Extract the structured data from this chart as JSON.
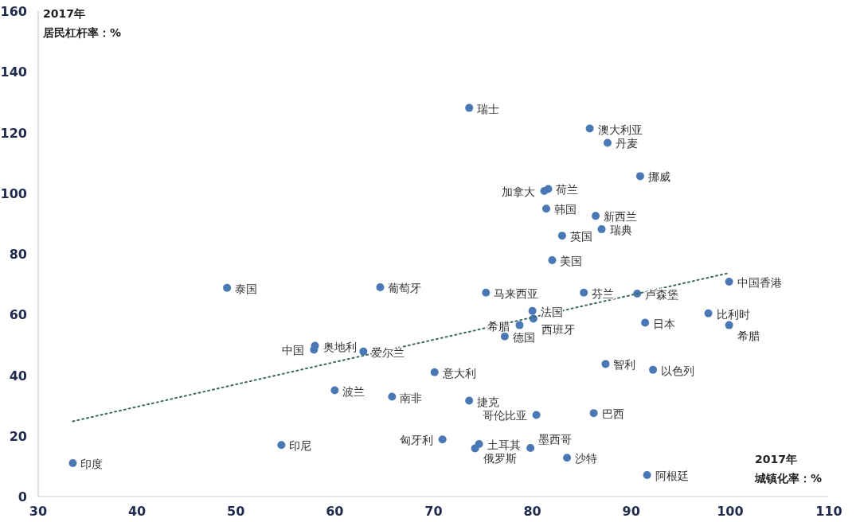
{
  "chart_data": {
    "type": "scatter",
    "xlabel": "城镇化率：%",
    "ylabel": "居民杠杆率：%",
    "xlim": [
      30,
      110
    ],
    "xticks": [
      30,
      40,
      50,
      60,
      70,
      80,
      90,
      100,
      110
    ],
    "ylim": [
      0,
      160
    ],
    "yticks": [
      0,
      20,
      40,
      60,
      80,
      100,
      120,
      140,
      160
    ],
    "grid": false,
    "marker": "circle",
    "series": [
      {
        "type": "scatter",
        "color": "#4a78b5",
        "x": [
          73.6,
          85.8,
          87.6,
          90.9,
          81.6,
          81.2,
          81.4,
          86.4,
          87.0,
          83.0,
          82.0,
          99.9,
          75.3,
          85.2,
          90.6,
          80.0,
          80.1,
          78.7,
          77.2,
          97.8,
          91.4,
          99.9,
          87.4,
          92.2,
          70.1,
          73.6,
          80.4,
          86.2,
          70.9,
          74.6,
          74.2,
          79.8,
          83.5,
          91.6,
          49.1,
          64.6,
          58.0,
          57.9,
          62.9,
          60.0,
          65.8,
          54.6,
          33.5
        ],
        "values": [
          128.1,
          121.3,
          116.6,
          105.6,
          101.4,
          100.7,
          94.9,
          92.5,
          88.1,
          86.0,
          77.9,
          70.8,
          67.2,
          67.2,
          66.9,
          61.2,
          58.6,
          56.5,
          52.8,
          60.4,
          57.3,
          56.5,
          43.7,
          41.8,
          41.0,
          31.6,
          26.9,
          27.5,
          18.8,
          17.3,
          15.9,
          16.0,
          12.8,
          7.1,
          68.8,
          69.0,
          49.7,
          48.4,
          47.8,
          35.0,
          32.9,
          17.0,
          11.0
        ]
      },
      {
        "type": "line",
        "color": "#3a6b5e",
        "line_style": "dotted",
        "marker": "none",
        "x": [
          33.5,
          99.9
        ],
        "values": [
          24.8,
          73.7
        ]
      }
    ],
    "annotations": [
      {
        "text": "瑞士",
        "x": 73.6,
        "y": 128.1
      },
      {
        "text": "澳大利亚",
        "x": 85.8,
        "y": 121.3
      },
      {
        "text": "丹麦",
        "x": 87.6,
        "y": 116.6
      },
      {
        "text": "挪威",
        "x": 90.9,
        "y": 105.6
      },
      {
        "text": "荷兰",
        "x": 81.6,
        "y": 101.4
      },
      {
        "text": "加拿大",
        "x": 81.2,
        "y": 100.7
      },
      {
        "text": "韩国",
        "x": 81.4,
        "y": 94.9
      },
      {
        "text": "新西兰",
        "x": 86.4,
        "y": 92.5
      },
      {
        "text": "瑞典",
        "x": 87.0,
        "y": 88.1
      },
      {
        "text": "英国",
        "x": 83.0,
        "y": 86.0
      },
      {
        "text": "美国",
        "x": 82.0,
        "y": 77.9
      },
      {
        "text": "中国香港",
        "x": 99.9,
        "y": 70.8
      },
      {
        "text": "马来西亚",
        "x": 75.3,
        "y": 67.2
      },
      {
        "text": "芬兰",
        "x": 85.2,
        "y": 67.2
      },
      {
        "text": "卢森堡",
        "x": 90.6,
        "y": 66.9
      },
      {
        "text": "法国",
        "x": 80.0,
        "y": 61.2
      },
      {
        "text": "西班牙",
        "x": 80.1,
        "y": 58.6
      },
      {
        "text": "希腊",
        "x": 78.7,
        "y": 56.5
      },
      {
        "text": "德国",
        "x": 77.2,
        "y": 52.8
      },
      {
        "text": "比利时",
        "x": 97.8,
        "y": 60.4
      },
      {
        "text": "日本",
        "x": 91.4,
        "y": 57.3
      },
      {
        "text": "希腊",
        "x": 99.9,
        "y": 56.5
      },
      {
        "text": "智利",
        "x": 87.4,
        "y": 43.7
      },
      {
        "text": "以色列",
        "x": 92.2,
        "y": 41.8
      },
      {
        "text": "意大利",
        "x": 70.1,
        "y": 41.0
      },
      {
        "text": "捷克",
        "x": 73.6,
        "y": 31.6
      },
      {
        "text": "哥伦比亚",
        "x": 80.4,
        "y": 26.9
      },
      {
        "text": "巴西",
        "x": 86.2,
        "y": 27.5
      },
      {
        "text": "匈牙利",
        "x": 70.9,
        "y": 18.8
      },
      {
        "text": "土耳其",
        "x": 74.6,
        "y": 17.3
      },
      {
        "text": "俄罗斯",
        "x": 74.2,
        "y": 15.9
      },
      {
        "text": "墨西哥",
        "x": 79.8,
        "y": 16.0
      },
      {
        "text": "沙特",
        "x": 83.5,
        "y": 12.8
      },
      {
        "text": "阿根廷",
        "x": 91.6,
        "y": 7.1
      },
      {
        "text": "泰国",
        "x": 49.1,
        "y": 68.8
      },
      {
        "text": "葡萄牙",
        "x": 64.6,
        "y": 69.0
      },
      {
        "text": "奥地利",
        "x": 58.0,
        "y": 49.7
      },
      {
        "text": "中国",
        "x": 57.9,
        "y": 48.4
      },
      {
        "text": "爱尔兰",
        "x": 62.9,
        "y": 47.8
      },
      {
        "text": "波兰",
        "x": 60.0,
        "y": 35.0
      },
      {
        "text": "南非",
        "x": 65.8,
        "y": 32.9
      },
      {
        "text": "印尼",
        "x": 54.6,
        "y": 17.0
      },
      {
        "text": "印度",
        "x": 33.5,
        "y": 11.0
      },
      "2017年",
      "2017年"
    ]
  }
}
